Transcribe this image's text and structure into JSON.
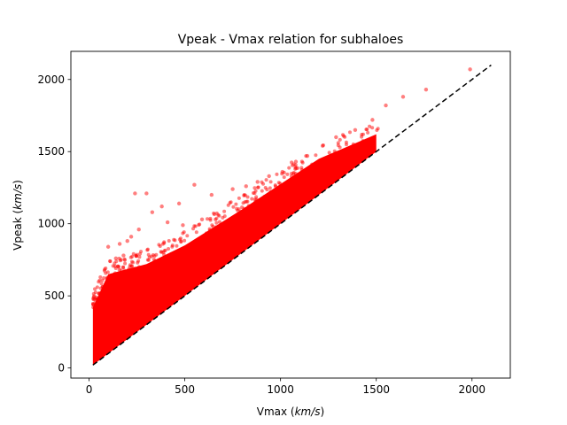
{
  "chart_data": {
    "type": "scatter",
    "title": "Vpeak - Vmax relation for subhaloes",
    "xlabel": "Vmax",
    "xunit": "km/s",
    "ylabel": "Vpeak",
    "yunit": "km/s",
    "xlim": [
      -95,
      2200
    ],
    "ylim": [
      -70,
      2195
    ],
    "xticks": [
      0,
      500,
      1000,
      1500,
      2000
    ],
    "yticks": [
      0,
      500,
      1000,
      1500,
      2000
    ],
    "grid": false,
    "legend": "none",
    "series": [
      {
        "marker_color": "#ff0000",
        "marker_alpha": 0.5,
        "density_band": {
          "description_points": [
            {
              "vmax": 20,
              "vpeak_min": 20,
              "vpeak_max": 420
            },
            {
              "vmax": 100,
              "vpeak_min": 100,
              "vpeak_max": 650
            },
            {
              "vmax": 300,
              "vpeak_min": 300,
              "vpeak_max": 720
            },
            {
              "vmax": 500,
              "vpeak_min": 500,
              "vpeak_max": 850
            },
            {
              "vmax": 800,
              "vpeak_min": 800,
              "vpeak_max": 1100
            },
            {
              "vmax": 1200,
              "vpeak_min": 1200,
              "vpeak_max": 1450
            },
            {
              "vmax": 1500,
              "vpeak_min": 1500,
              "vpeak_max": 1620
            }
          ]
        },
        "outliers": [
          {
            "x": 1990,
            "y": 2070
          },
          {
            "x": 1760,
            "y": 1930
          },
          {
            "x": 1640,
            "y": 1880
          },
          {
            "x": 1550,
            "y": 1820
          },
          {
            "x": 1480,
            "y": 1720
          },
          {
            "x": 1390,
            "y": 1650
          },
          {
            "x": 1290,
            "y": 1600
          },
          {
            "x": 1220,
            "y": 1540
          },
          {
            "x": 1140,
            "y": 1470
          },
          {
            "x": 1080,
            "y": 1430
          },
          {
            "x": 1010,
            "y": 1360
          },
          {
            "x": 940,
            "y": 1330
          },
          {
            "x": 880,
            "y": 1290
          },
          {
            "x": 820,
            "y": 1260
          },
          {
            "x": 750,
            "y": 1240
          },
          {
            "x": 640,
            "y": 1200
          },
          {
            "x": 550,
            "y": 1270
          },
          {
            "x": 470,
            "y": 1140
          },
          {
            "x": 380,
            "y": 1120
          },
          {
            "x": 300,
            "y": 1210
          },
          {
            "x": 240,
            "y": 1210
          },
          {
            "x": 330,
            "y": 1080
          },
          {
            "x": 410,
            "y": 1010
          },
          {
            "x": 490,
            "y": 990
          },
          {
            "x": 590,
            "y": 1030
          },
          {
            "x": 220,
            "y": 910
          },
          {
            "x": 200,
            "y": 880
          },
          {
            "x": 160,
            "y": 860
          },
          {
            "x": 100,
            "y": 840
          },
          {
            "x": 260,
            "y": 960
          },
          {
            "x": 180,
            "y": 780
          },
          {
            "x": 140,
            "y": 760
          }
        ]
      }
    ],
    "reference_line": {
      "style": "dashed",
      "color": "#000000",
      "points": [
        [
          20,
          20
        ],
        [
          2100,
          2100
        ]
      ]
    }
  }
}
